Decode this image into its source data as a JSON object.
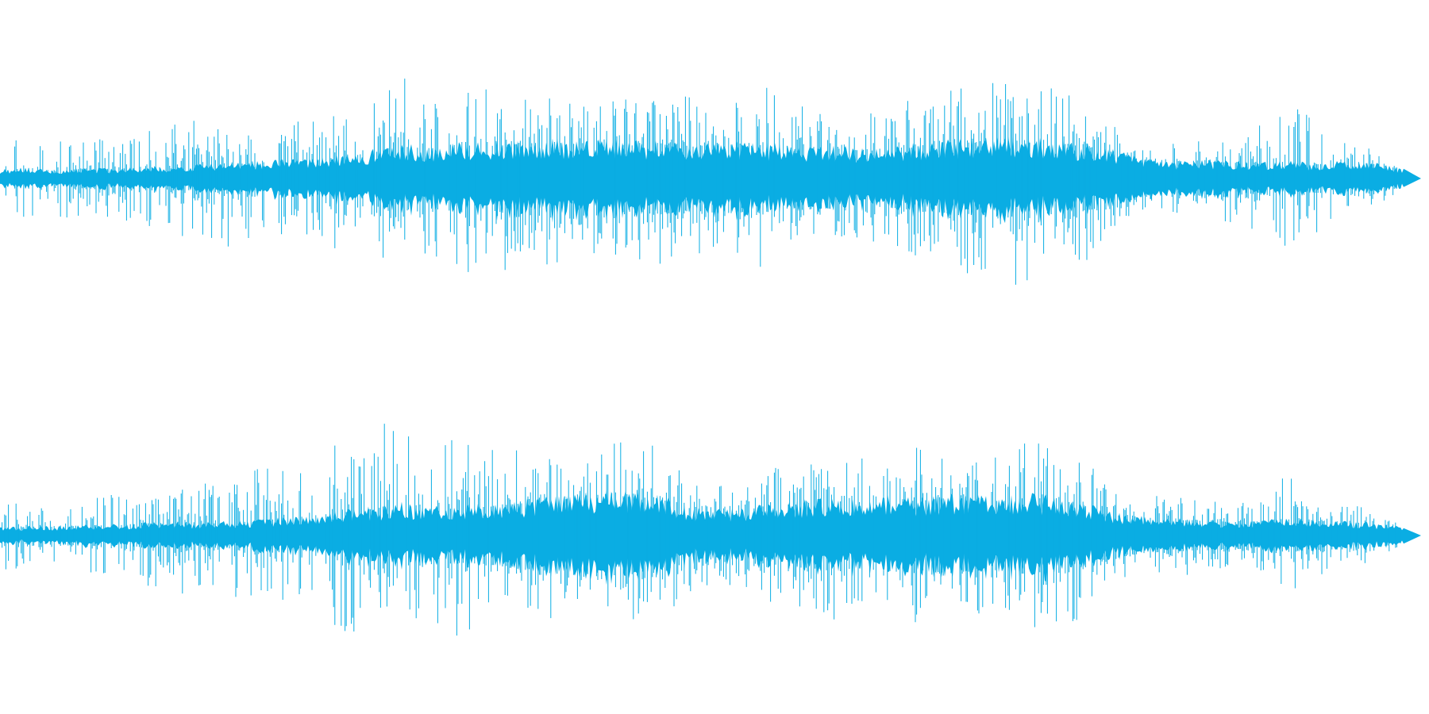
{
  "colors": {
    "background": "#ffffff",
    "waveform": "#0aade3"
  },
  "channels": [
    {
      "name": "",
      "envelope": [
        0.06,
        0.07,
        0.05,
        0.07,
        0.06,
        0.08,
        0.07,
        0.09,
        0.1,
        0.11,
        0.12,
        0.13,
        0.15,
        0.18,
        0.22,
        0.21,
        0.23,
        0.22,
        0.24,
        0.25,
        0.24,
        0.25,
        0.23,
        0.24,
        0.22,
        0.24,
        0.23,
        0.22,
        0.2,
        0.21,
        0.19,
        0.2,
        0.22,
        0.24,
        0.25,
        0.26,
        0.25,
        0.24,
        0.22,
        0.18,
        0.12,
        0.11,
        0.12,
        0.11,
        0.1,
        0.11,
        0.1,
        0.11,
        0.1,
        0.06
      ],
      "spikes": [
        0.35,
        0.3,
        0.28,
        0.26,
        0.3,
        0.32,
        0.4,
        0.42,
        0.48,
        0.45,
        0.38,
        0.45,
        0.55,
        0.6,
        0.72,
        0.7,
        0.68,
        0.72,
        0.65,
        0.62,
        0.58,
        0.6,
        0.55,
        0.62,
        0.58,
        0.52,
        0.55,
        0.7,
        0.55,
        0.4,
        0.45,
        0.48,
        0.62,
        0.7,
        0.78,
        0.8,
        0.72,
        0.65,
        0.6,
        0.35,
        0.22,
        0.25,
        0.3,
        0.32,
        0.38,
        0.6,
        0.4,
        0.25,
        0.2,
        0.08
      ]
    },
    {
      "name": "",
      "envelope": [
        0.05,
        0.06,
        0.06,
        0.07,
        0.07,
        0.08,
        0.09,
        0.08,
        0.09,
        0.1,
        0.12,
        0.14,
        0.16,
        0.18,
        0.21,
        0.18,
        0.19,
        0.2,
        0.22,
        0.24,
        0.26,
        0.28,
        0.27,
        0.26,
        0.18,
        0.16,
        0.18,
        0.2,
        0.22,
        0.24,
        0.23,
        0.25,
        0.24,
        0.26,
        0.25,
        0.24,
        0.26,
        0.25,
        0.2,
        0.14,
        0.12,
        0.11,
        0.1,
        0.09,
        0.1,
        0.11,
        0.1,
        0.09,
        0.08,
        0.05
      ],
      "spikes": [
        0.25,
        0.22,
        0.2,
        0.25,
        0.3,
        0.35,
        0.4,
        0.45,
        0.42,
        0.48,
        0.5,
        0.55,
        0.7,
        0.8,
        0.78,
        0.65,
        0.72,
        0.6,
        0.62,
        0.58,
        0.6,
        0.68,
        0.7,
        0.64,
        0.4,
        0.35,
        0.38,
        0.48,
        0.52,
        0.6,
        0.55,
        0.58,
        0.62,
        0.6,
        0.55,
        0.58,
        0.7,
        0.65,
        0.55,
        0.3,
        0.28,
        0.3,
        0.25,
        0.22,
        0.26,
        0.45,
        0.28,
        0.22,
        0.18,
        0.06
      ]
    }
  ]
}
